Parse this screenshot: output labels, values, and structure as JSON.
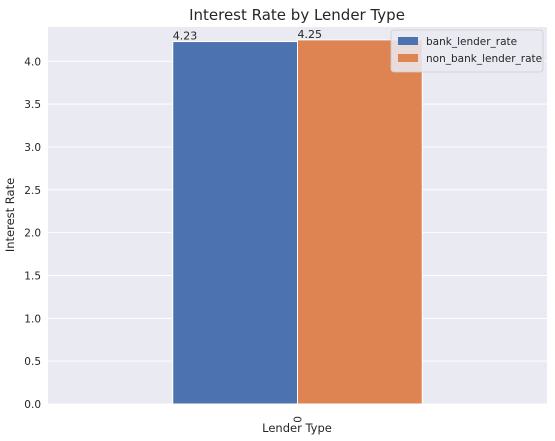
{
  "chart_data": {
    "type": "bar",
    "title": "Interest Rate by Lender Type",
    "xlabel": "Lender Type",
    "ylabel": "Interest Rate",
    "categories": [
      "0"
    ],
    "series": [
      {
        "name": "bank_lender_rate",
        "values": [
          4.23
        ],
        "color": "#4c72b0"
      },
      {
        "name": "non_bank_lender_rate",
        "values": [
          4.25
        ],
        "color": "#dd8452"
      }
    ],
    "data_labels": [
      "4.23",
      "4.25"
    ],
    "ylim": [
      0,
      4.4
    ],
    "yticks": [
      0.0,
      0.5,
      1.0,
      1.5,
      2.0,
      2.5,
      3.0,
      3.5,
      4.0
    ],
    "ytick_labels": [
      "0.0",
      "0.5",
      "1.0",
      "1.5",
      "2.0",
      "2.5",
      "3.0",
      "3.5",
      "4.0"
    ],
    "grid": true,
    "legend_position": "top-right",
    "background_color": "#eaeaf2",
    "grid_color": "#ffffff"
  }
}
